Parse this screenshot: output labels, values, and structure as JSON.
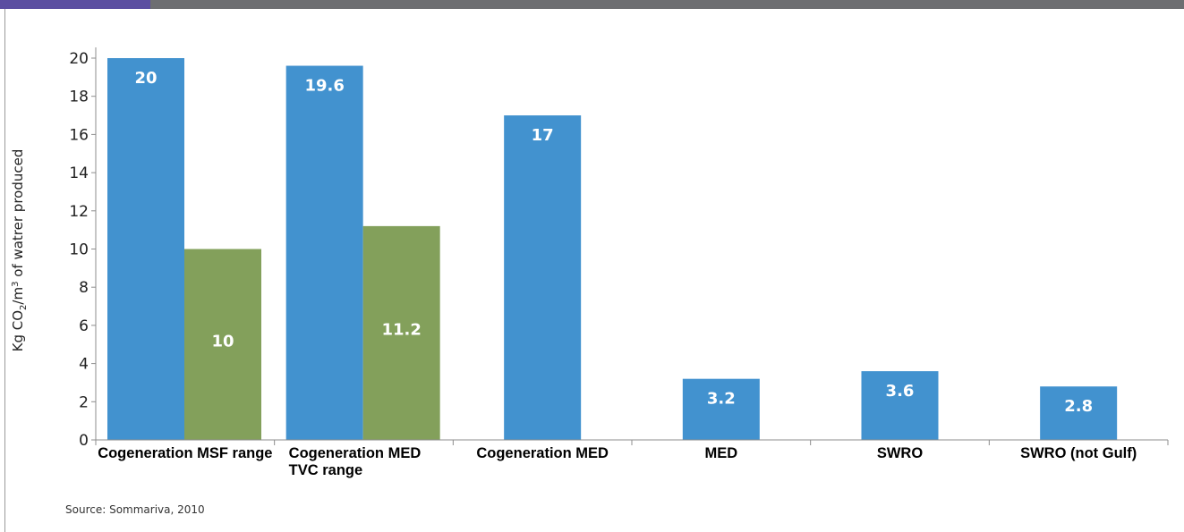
{
  "chart_data": {
    "type": "bar",
    "categories": [
      [
        "Cogeneration MSF range"
      ],
      [
        "Cogeneration MED",
        "TVC range"
      ],
      [
        "Cogeneration MED"
      ],
      [
        "MED"
      ],
      [
        "SWRO"
      ],
      [
        "SWRO (not Gulf)"
      ]
    ],
    "series": [
      {
        "values": [
          20,
          19.6,
          17,
          3.2,
          3.6,
          2.8
        ],
        "color": "#4292cf"
      },
      {
        "values": [
          10,
          11.2,
          null,
          null,
          null,
          null
        ],
        "color": "#83a05b"
      }
    ],
    "data_labels": [
      [
        "20",
        "19.6",
        "17",
        "3.2",
        "3.6",
        "2.8"
      ],
      [
        "10",
        "11.2",
        null,
        null,
        null,
        null
      ]
    ],
    "ylabel": {
      "prefix": "Kg CO",
      "sub": "2",
      "mid": "/m",
      "sup": "3",
      "suffix": " of watrer produced"
    },
    "ylim": [
      0,
      20
    ],
    "yticks": [
      0,
      2,
      4,
      6,
      8,
      10,
      12,
      14,
      16,
      18,
      20
    ],
    "grid": false,
    "legend": "none"
  },
  "source": "Source: Sommariva, 2010",
  "colors": {
    "top_bar": "#6d6e71",
    "top_accent": "#5b4ea1"
  }
}
